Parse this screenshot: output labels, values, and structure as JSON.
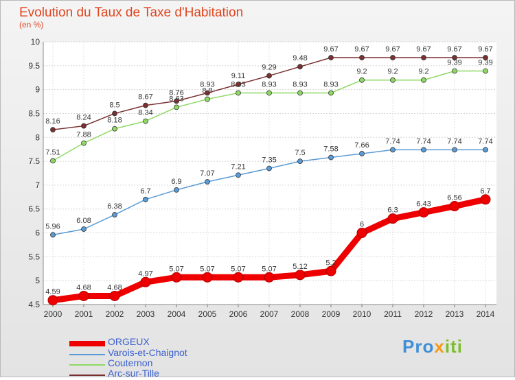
{
  "title": "Evolution du Taux de Taxe d'Habitation",
  "unit_label": "(en %)",
  "brand": {
    "part1": "Pro",
    "part2": "x",
    "part3": "iti"
  },
  "chart_data": {
    "type": "line",
    "title": "Evolution du Taux de Taxe d'Habitation",
    "ylabel": "(en %)",
    "xlabel": "",
    "ylim": [
      4.5,
      10
    ],
    "yticks": [
      "4.5",
      "5",
      "5.5",
      "6",
      "6.5",
      "7",
      "7.5",
      "8",
      "8.5",
      "9",
      "9.5",
      "10"
    ],
    "grid": true,
    "legend_position": "bottom-left",
    "x": [
      "2000",
      "2001",
      "2002",
      "2003",
      "2004",
      "2005",
      "2006",
      "2007",
      "2008",
      "2009",
      "2010",
      "2011",
      "2012",
      "2013",
      "2014"
    ],
    "series": [
      {
        "name": "ORGEUX",
        "color": "#ee0000",
        "highlight": true,
        "values": [
          4.59,
          4.68,
          4.68,
          4.97,
          5.07,
          5.07,
          5.07,
          5.07,
          5.12,
          5.2,
          6,
          6.3,
          6.43,
          6.56,
          6.7
        ],
        "labels": [
          "4.59",
          "4.68",
          "4.68",
          "4.97",
          "5.07",
          "5.07",
          "5.07",
          "5.07",
          "5.12",
          "5.2",
          "6",
          "6.3",
          "6.43",
          "6.56",
          "6.7"
        ]
      },
      {
        "name": "Varois-et-Chaignot",
        "color": "#5b9bd5",
        "highlight": false,
        "values": [
          5.96,
          6.08,
          6.38,
          6.7,
          6.9,
          7.07,
          7.21,
          7.35,
          7.5,
          7.58,
          7.66,
          7.74,
          7.74,
          7.74,
          7.74
        ],
        "labels": [
          "5.96",
          "6.08",
          "6.38",
          "6.7",
          "6.9",
          "7.07",
          "7.21",
          "7.35",
          "7.5",
          "7.58",
          "7.66",
          "7.74",
          "7.74",
          "7.74",
          "7.74"
        ]
      },
      {
        "name": "Couternon",
        "color": "#8ed863",
        "highlight": false,
        "values": [
          7.51,
          7.88,
          8.18,
          8.34,
          8.63,
          8.8,
          8.93,
          8.93,
          8.93,
          8.93,
          9.2,
          9.2,
          9.2,
          9.39,
          9.39
        ],
        "labels": [
          "7.51",
          "7.88",
          "8.18",
          "8.34",
          "8.63",
          "8.8",
          "8.93",
          "8.93",
          "8.93",
          "8.93",
          "9.2",
          "9.2",
          "9.2",
          "9.39",
          "9.39"
        ]
      },
      {
        "name": "Arc-sur-Tille",
        "color": "#7a3030",
        "highlight": false,
        "values": [
          8.16,
          8.24,
          8.5,
          8.67,
          8.76,
          8.93,
          9.11,
          9.29,
          9.48,
          9.67,
          9.67,
          9.67,
          9.67,
          9.67,
          9.67
        ],
        "labels": [
          "8.16",
          "8.24",
          "8.5",
          "8.67",
          "8.76",
          "8.93",
          "9.11",
          "9.29",
          "9.48",
          "9.67",
          "9.67",
          "9.67",
          "9.67",
          "9.67",
          "9.67"
        ]
      }
    ]
  }
}
